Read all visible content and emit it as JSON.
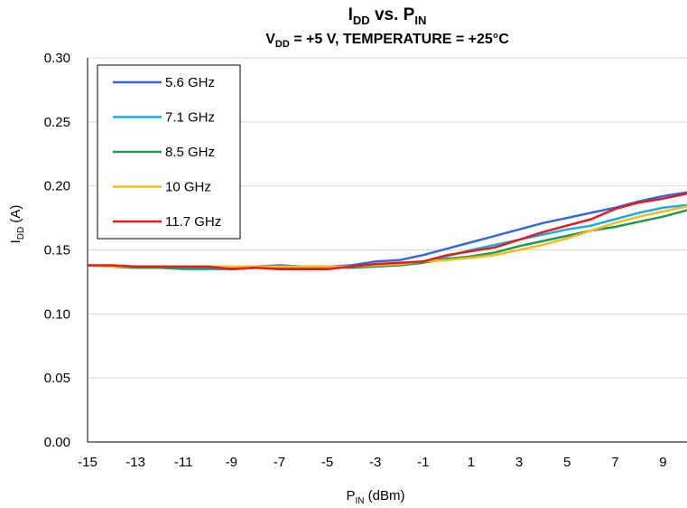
{
  "chart_data": {
    "type": "line",
    "title": {
      "main": "I",
      "main_sub": "DD",
      "main_mid": " vs. P",
      "main_sub2": "IN"
    },
    "subtitle": {
      "v": "V",
      "v_sub": "DD",
      "rest": " = +5 V, TEMPERATURE = +25°C"
    },
    "xlabel": {
      "main": "P",
      "sub": "IN",
      "rest": " (dBm)"
    },
    "ylabel": {
      "main": "I",
      "sub": "DD",
      "rest": " (A)"
    },
    "xlim": [
      -15,
      10
    ],
    "ylim": [
      0,
      0.3
    ],
    "xticks": [
      "-15",
      "-13",
      "-11",
      "-9",
      "-7",
      "-5",
      "-3",
      "-1",
      "1",
      "3",
      "5",
      "7",
      "9"
    ],
    "xtick_values": [
      -15,
      -13,
      -11,
      -9,
      -7,
      -5,
      -3,
      -1,
      1,
      3,
      5,
      7,
      9
    ],
    "yticks": [
      "0.00",
      "0.05",
      "0.10",
      "0.15",
      "0.20",
      "0.25",
      "0.30"
    ],
    "ytick_values": [
      0,
      0.05,
      0.1,
      0.15,
      0.2,
      0.25,
      0.3
    ],
    "grid": "horizontal",
    "legend_position": "top-left",
    "x": [
      -15,
      -14,
      -13,
      -12,
      -11,
      -10,
      -9,
      -8,
      -7,
      -6,
      -5,
      -4,
      -3,
      -2,
      -1,
      0,
      1,
      2,
      3,
      4,
      5,
      6,
      7,
      8,
      9,
      10
    ],
    "series": [
      {
        "name": "5.6 GHz",
        "color": "#3366e6",
        "values": [
          0.138,
          0.137,
          0.137,
          0.137,
          0.136,
          0.136,
          0.136,
          0.137,
          0.138,
          0.137,
          0.137,
          0.138,
          0.141,
          0.142,
          0.146,
          0.151,
          0.156,
          0.161,
          0.166,
          0.171,
          0.175,
          0.179,
          0.183,
          0.188,
          0.192,
          0.195
        ]
      },
      {
        "name": "7.1 GHz",
        "color": "#1aaae6",
        "values": [
          0.138,
          0.137,
          0.136,
          0.136,
          0.135,
          0.135,
          0.135,
          0.136,
          0.136,
          0.136,
          0.136,
          0.137,
          0.137,
          0.139,
          0.141,
          0.145,
          0.15,
          0.154,
          0.158,
          0.162,
          0.166,
          0.169,
          0.174,
          0.179,
          0.183,
          0.185
        ]
      },
      {
        "name": "8.5 GHz",
        "color": "#1a9a4a",
        "values": [
          0.138,
          0.137,
          0.136,
          0.136,
          0.136,
          0.136,
          0.136,
          0.136,
          0.136,
          0.136,
          0.137,
          0.136,
          0.137,
          0.138,
          0.14,
          0.143,
          0.145,
          0.148,
          0.153,
          0.157,
          0.161,
          0.165,
          0.168,
          0.172,
          0.176,
          0.181
        ]
      },
      {
        "name": "10 GHz",
        "color": "#ffb81a",
        "values": [
          0.138,
          0.137,
          0.137,
          0.137,
          0.137,
          0.137,
          0.137,
          0.137,
          0.137,
          0.137,
          0.137,
          0.137,
          0.138,
          0.139,
          0.141,
          0.142,
          0.144,
          0.146,
          0.15,
          0.154,
          0.159,
          0.165,
          0.171,
          0.176,
          0.18,
          0.184
        ]
      },
      {
        "name": "11.7 GHz",
        "color": "#e61a1a",
        "values": [
          0.138,
          0.138,
          0.137,
          0.137,
          0.137,
          0.137,
          0.135,
          0.136,
          0.135,
          0.135,
          0.135,
          0.137,
          0.139,
          0.14,
          0.141,
          0.146,
          0.149,
          0.152,
          0.158,
          0.164,
          0.169,
          0.174,
          0.182,
          0.187,
          0.19,
          0.194
        ]
      }
    ]
  }
}
